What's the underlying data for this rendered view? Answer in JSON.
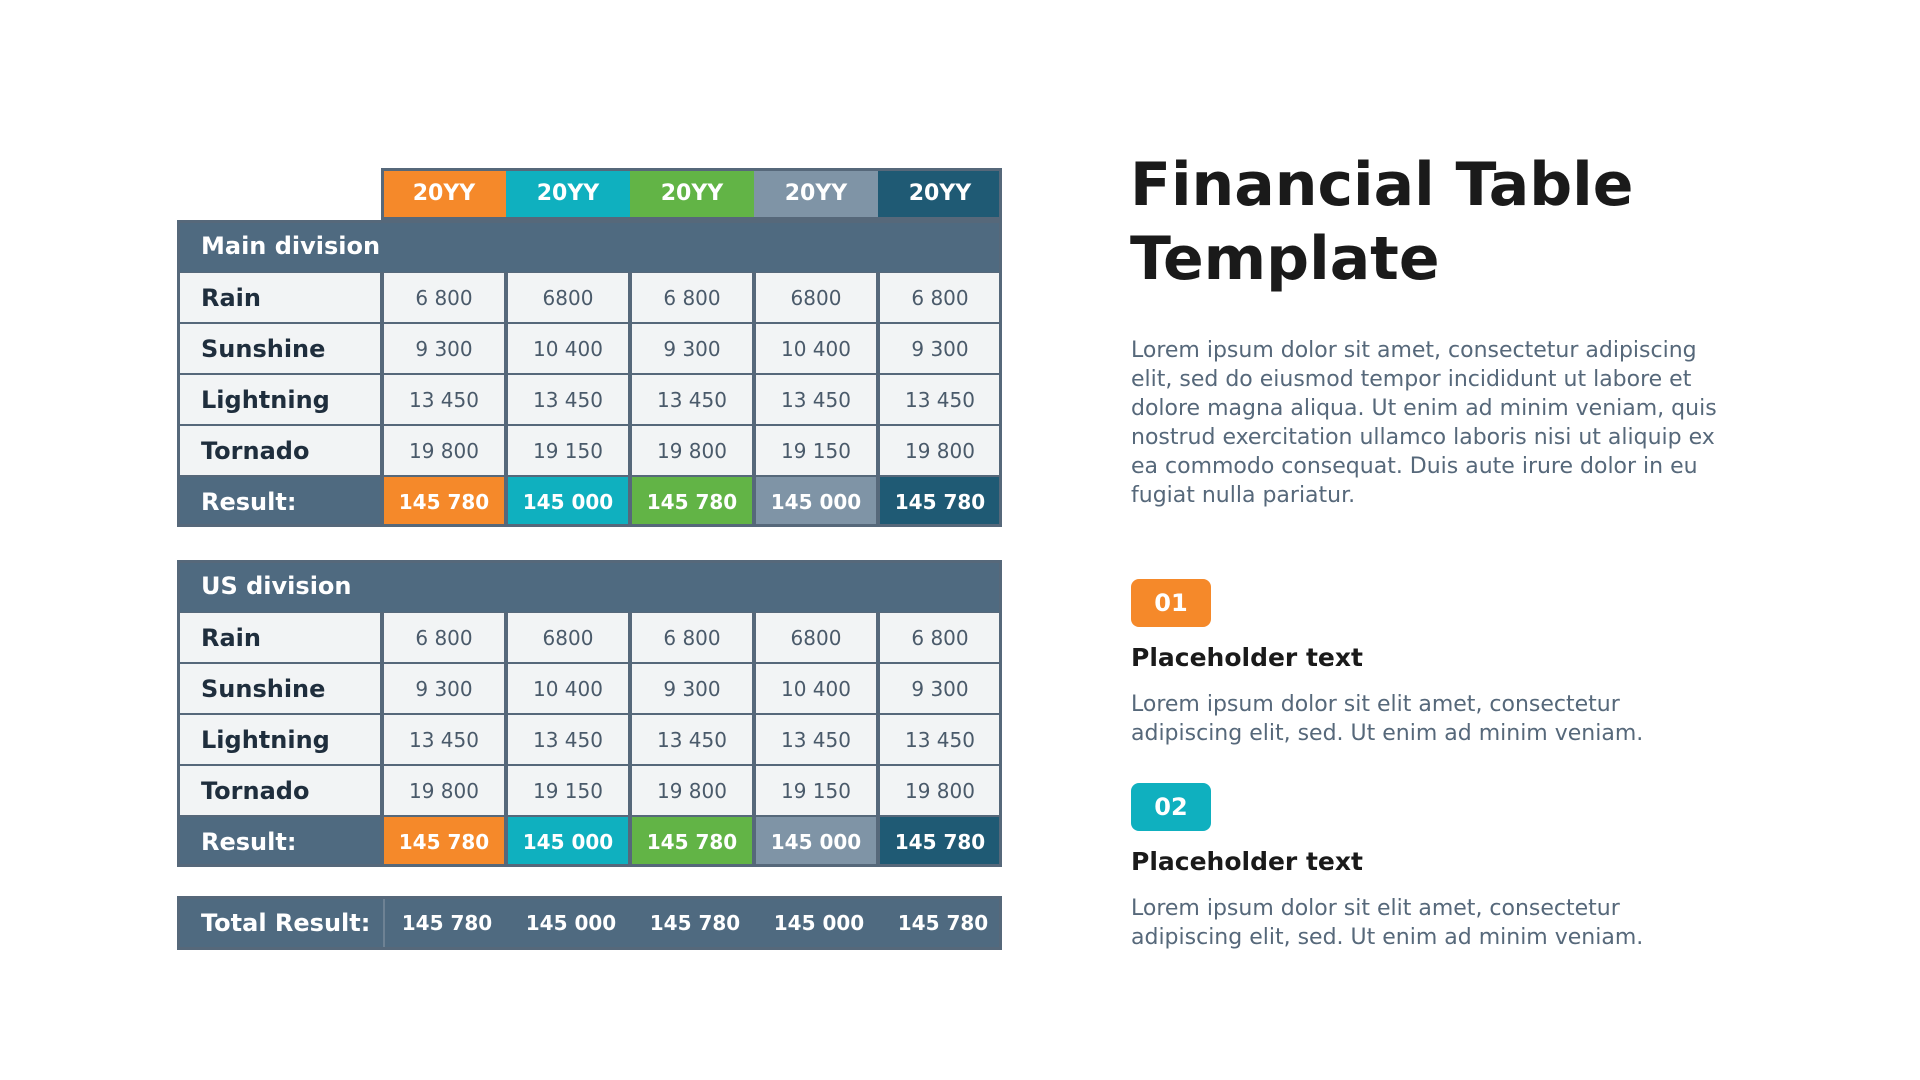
{
  "colors": {
    "orange": "#f5892a",
    "teal": "#0fb0bf",
    "green": "#62b446",
    "slate": "#7f94a6",
    "navy": "#1f5a74",
    "header_dark": "#4f6a80"
  },
  "years": [
    "20YY",
    "20YY",
    "20YY",
    "20YY",
    "20YY"
  ],
  "main_division": {
    "title": "Main division",
    "rows": [
      {
        "label": "Rain",
        "values": [
          "6 800",
          "6800",
          "6 800",
          "6800",
          "6 800"
        ]
      },
      {
        "label": "Sunshine",
        "values": [
          "9 300",
          "10 400",
          "9 300",
          "10 400",
          "9 300"
        ]
      },
      {
        "label": "Lightning",
        "values": [
          "13 450",
          "13 450",
          "13 450",
          "13 450",
          "13 450"
        ]
      },
      {
        "label": "Tornado",
        "values": [
          "19 800",
          "19 150",
          "19 800",
          "19 150",
          "19 800"
        ]
      }
    ],
    "result_label": "Result:",
    "result_values": [
      "145 780",
      "145 000",
      "145 780",
      "145 000",
      "145 780"
    ]
  },
  "us_division": {
    "title": "US division",
    "rows": [
      {
        "label": "Rain",
        "values": [
          "6 800",
          "6800",
          "6 800",
          "6800",
          "6 800"
        ]
      },
      {
        "label": "Sunshine",
        "values": [
          "9 300",
          "10 400",
          "9 300",
          "10 400",
          "9 300"
        ]
      },
      {
        "label": "Lightning",
        "values": [
          "13 450",
          "13 450",
          "13 450",
          "13 450",
          "13 450"
        ]
      },
      {
        "label": "Tornado",
        "values": [
          "19 800",
          "19 150",
          "19 800",
          "19 150",
          "19 800"
        ]
      }
    ],
    "result_label": "Result:",
    "result_values": [
      "145 780",
      "145 000",
      "145 780",
      "145 000",
      "145 780"
    ]
  },
  "total": {
    "label": "Total Result:",
    "values": [
      "145 780",
      "145 000",
      "145 780",
      "145 000",
      "145 780"
    ]
  },
  "title_line1": "Financial Table",
  "title_line2": "Template",
  "lead": "Lorem ipsum dolor sit amet, consectetur adipiscing elit, sed do eiusmod tempor incididunt ut labore et dolore magna aliqua. Ut enim ad minim veniam, quis nostrud exercitation ullamco laboris nisi ut aliquip ex ea commodo consequat. Duis aute irure dolor in eu fugiat nulla pariatur.",
  "points": [
    {
      "badge": "01",
      "title": "Placeholder text",
      "text": "Lorem ipsum dolor sit elit amet, consectetur adipiscing elit, sed. Ut enim ad minim veniam."
    },
    {
      "badge": "02",
      "title": "Placeholder text",
      "text": "Lorem ipsum dolor sit elit amet, consectetur adipiscing elit, sed. Ut enim ad minim veniam."
    }
  ]
}
